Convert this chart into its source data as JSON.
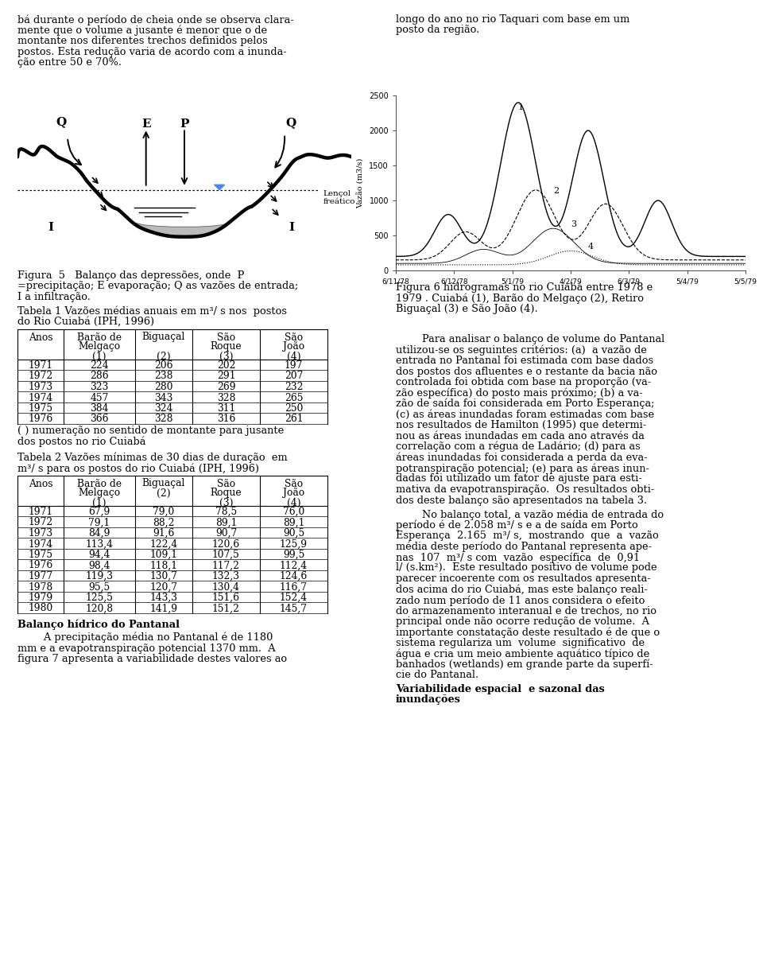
{
  "bg_color": "#ffffff",
  "fig_width": 9.6,
  "fig_height": 12.22,
  "lencol_label": "Lençol\nfreático",
  "left_col_text_top": "bá durante o período de cheia onde se observa clara-\nmente que o volume a jusante é menor que o de\nmontante nos diferentes trechos definidos pelos\npostos. Esta redução varia de acordo com a inunda-\nção entre 50 e 70%.",
  "fig5_caption": "Figura  5   Balanço das depressões, onde  P\n=precipitação; E evaporação; Q as vazões de entrada;\nI a infiltração.",
  "tabela1_title": "Tabela 1 Vazões médias anuais em m³/ s nos  postos\ndo Rio Cuiabá (IPH, 1996)",
  "tabela1_headers": [
    "Anos",
    "Barão de\nMelgaço\n(1)",
    "Biguaçal\n\n(2)",
    "São\nRoque\n(3)",
    "São\nJoão\n(4)"
  ],
  "tabela1_rows": [
    [
      "1971",
      "224",
      "206",
      "202",
      "197"
    ],
    [
      "1972",
      "286",
      "238",
      "291",
      "207"
    ],
    [
      "1973",
      "323",
      "280",
      "269",
      "232"
    ],
    [
      "1974",
      "457",
      "343",
      "328",
      "265"
    ],
    [
      "1975",
      "384",
      "324",
      "311",
      "250"
    ],
    [
      "1976",
      "366",
      "328",
      "316",
      "261"
    ]
  ],
  "tabela1_note": "( ) numeração no sentido de montante para jusante\ndos postos no rio Cuiabá",
  "tabela2_title": "Tabela 2 Vazões mínimas de 30 dias de duração  em\nm³/ s para os postos do rio Cuiabá (IPH, 1996)",
  "tabela2_headers": [
    "Anos",
    "Barão de\nMelgaço\n(1)",
    "Biguaçal\n(2)",
    "São\nRoque\n(3)",
    "São\nJoão\n(4)"
  ],
  "tabela2_rows": [
    [
      "1971",
      "67,9",
      "79,0",
      "78,5",
      "76,0"
    ],
    [
      "1972",
      "79,1",
      "88,2",
      "89,1",
      "89,1"
    ],
    [
      "1973",
      "84,9",
      "91,6",
      "90,7",
      "90,5"
    ],
    [
      "1974",
      "113,4",
      "122,4",
      "120,6",
      "125,9"
    ],
    [
      "1975",
      "94,4",
      "109,1",
      "107,5",
      "99,5"
    ],
    [
      "1976",
      "98,4",
      "118,1",
      "117,2",
      "112,4"
    ],
    [
      "1977",
      "119,3",
      "130,7",
      "132,3",
      "124,6"
    ],
    [
      "1978",
      "95,5",
      "120,7",
      "130,4",
      "116,7"
    ],
    [
      "1979",
      "125,5",
      "143,3",
      "151,6",
      "152,4"
    ],
    [
      "1980",
      "120,8",
      "141,9",
      "151,2",
      "145,7"
    ]
  ],
  "balanço_title": "Balanço hídrico do Pantanal",
  "balanço_text": "        A precipitação média no Pantanal é de 1180\nmm e a evapotranspiração potencial 1370 mm.  A\nfigura 7 apresenta a variabilidade destes valores ao",
  "right_col_text_top": "longo do ano no rio Taquari com base em um\nposto da região.",
  "fig6_caption": "Figura 6 hidrogramas no rio Cuiabá entre 1978 e\n1979 . Cuiabá (1), Barão do Melgaço (2), Retiro\nBiguaçal (3) e São João (4).",
  "right_col_text2": "        Para analisar o balanço de volume do Pantanal\nutilizou-se os seguintes critérios: (a)  a vazão de\nentrada no Pantanal foi estimada com base dados\ndos postos dos afluentes e o restante da bacia não\ncontrolada foi obtida com base na proporção (va-\nzão específica) do posto mais próximo; (b) a va-\nzão de saída foi considerada em Porto Esperança;\n(c) as áreas inundadas foram estimadas com base\nnos resultados de Hamilton (1995) que determi-\nnou as áreas inundadas em cada ano através da\ncorrelação com a régua de Ldário; (d) para as\náreas inundadas foi considerada a perda da eva-\npotranspiração potencial; (e) para as áreas inun-\ndadas foi utilizado um fator de ajuste para esti-\nmativa da evapotranspiração.  Os resultados obti-\ndos deste balanço são apresentados na tabela 3.",
  "right_col_text3": "        No balanço total, a vazão média de entrada do\nperíodo é de 2.058 m³/ s e a de saída em Porto\nEsperança  2.165  m³/ s,  mostrando  que  a  vazão\nmédia deste período do Pantanal representa ape-\nnas  107  m³/ s com  vazão  específica  de  0,91\nl/ (s.km²).  Este resultado positivo de volume pode\nparecer incoerente com os resultados apresenta-\ndos acima do rio Cuiabá, mas este balanço reali-\nzado num período de 11 anos considera o efeito\ndo armazenamento interanual e de trechos, no rio\nprincipal onde não ocorre redução de volume.  A\nimportante constatação deste resultado é de que o\nsistema regulariza um  volume  significativo  de\nágua e cria um meio ambiente aquático típico de\nbanhados (wetlands) em grande parte da superfí-\ncie do Pantanal.",
  "variab_title": "Variabilidade espacial  e sazonal das\ninundações"
}
